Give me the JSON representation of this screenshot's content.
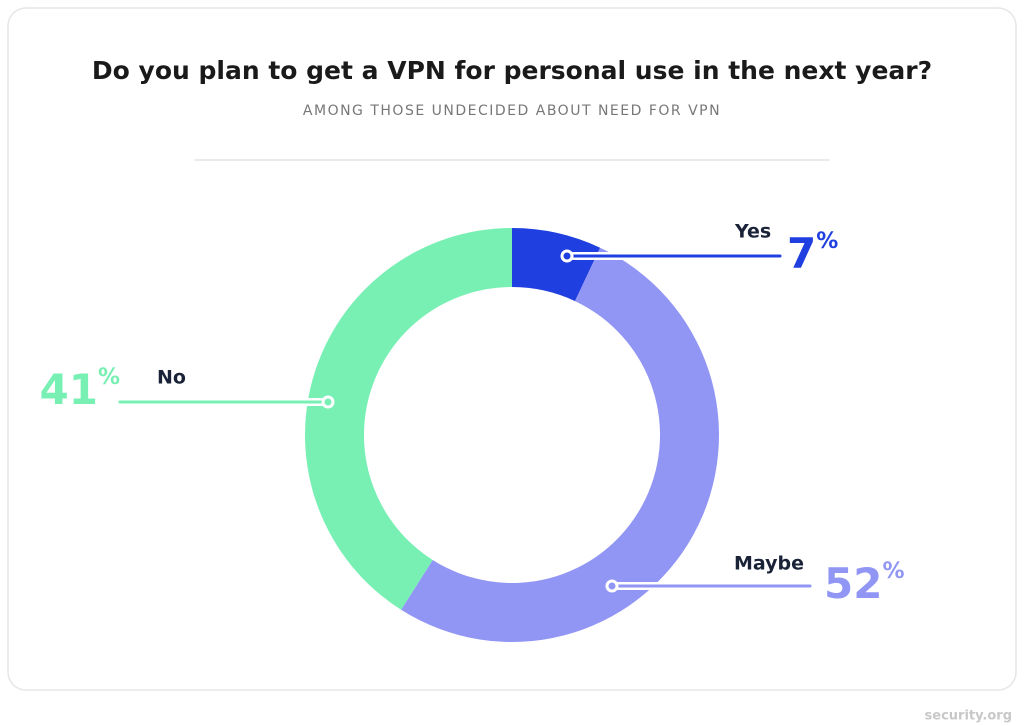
{
  "chart_data": {
    "type": "donut",
    "title": "Do you plan to get a VPN for personal use in the next year?",
    "subtitle": "AMONG THOSE UNDECIDED ABOUT NEED FOR VPN",
    "categories": [
      "Yes",
      "Maybe",
      "No"
    ],
    "values": [
      7,
      52,
      41
    ],
    "value_labels": [
      "7%",
      "52%",
      "41%"
    ],
    "colors": [
      "#1f3fe0",
      "#9196f5",
      "#78f0b4"
    ],
    "source": "security.org"
  }
}
